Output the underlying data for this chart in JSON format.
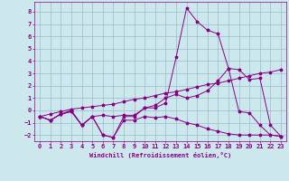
{
  "xlabel": "Windchill (Refroidissement éolien,°C)",
  "ylabel": "",
  "xlim": [
    -0.5,
    23.5
  ],
  "ylim": [
    -2.5,
    8.8
  ],
  "yticks": [
    -2,
    -1,
    0,
    1,
    2,
    3,
    4,
    5,
    6,
    7,
    8
  ],
  "xticks": [
    0,
    1,
    2,
    3,
    4,
    5,
    6,
    7,
    8,
    9,
    10,
    11,
    12,
    13,
    14,
    15,
    16,
    17,
    18,
    19,
    20,
    21,
    22,
    23
  ],
  "bg_color": "#cce8ec",
  "line_color": "#880088",
  "grid_color": "#99bbcc",
  "lines": [
    {
      "x": [
        0,
        1,
        2,
        3,
        4,
        5,
        6,
        7,
        8,
        9,
        10,
        11,
        12,
        13,
        14,
        15,
        16,
        17,
        18,
        19,
        20,
        21,
        22,
        23
      ],
      "y": [
        -0.5,
        -0.8,
        -0.3,
        0.0,
        -1.2,
        -0.5,
        -2.0,
        -2.2,
        -0.5,
        -0.5,
        0.2,
        0.2,
        0.6,
        4.3,
        8.3,
        7.2,
        6.5,
        6.2,
        3.4,
        -0.1,
        -0.2,
        -1.2,
        -2.0,
        -2.1
      ]
    },
    {
      "x": [
        0,
        1,
        2,
        3,
        4,
        5,
        6,
        7,
        8,
        9,
        10,
        11,
        12,
        13,
        14,
        15,
        16,
        17,
        18,
        19,
        20,
        21,
        22,
        23
      ],
      "y": [
        -0.5,
        -0.8,
        -0.3,
        -0.1,
        -1.2,
        -0.5,
        -0.4,
        -0.5,
        -0.4,
        -0.4,
        0.2,
        0.4,
        1.0,
        1.3,
        1.0,
        1.2,
        1.6,
        2.4,
        3.4,
        3.3,
        2.5,
        2.6,
        -1.2,
        -2.1
      ]
    },
    {
      "x": [
        0,
        1,
        2,
        3,
        4,
        5,
        6,
        7,
        8,
        9,
        10,
        11,
        12,
        13,
        14,
        15,
        16,
        17,
        18,
        19,
        20,
        21,
        22,
        23
      ],
      "y": [
        -0.5,
        -0.3,
        -0.1,
        0.1,
        0.2,
        0.3,
        0.4,
        0.5,
        0.7,
        0.9,
        1.0,
        1.2,
        1.4,
        1.5,
        1.7,
        1.9,
        2.1,
        2.2,
        2.4,
        2.6,
        2.8,
        3.0,
        3.1,
        3.3
      ]
    },
    {
      "x": [
        0,
        1,
        2,
        3,
        4,
        5,
        6,
        7,
        8,
        9,
        10,
        11,
        12,
        13,
        14,
        15,
        16,
        17,
        18,
        19,
        20,
        21,
        22,
        23
      ],
      "y": [
        -0.5,
        -0.8,
        -0.3,
        -0.1,
        -1.2,
        -0.5,
        -2.0,
        -2.2,
        -0.8,
        -0.8,
        -0.5,
        -0.6,
        -0.5,
        -0.7,
        -1.0,
        -1.2,
        -1.5,
        -1.7,
        -1.9,
        -2.0,
        -2.0,
        -2.0,
        -2.0,
        -2.1
      ]
    }
  ]
}
